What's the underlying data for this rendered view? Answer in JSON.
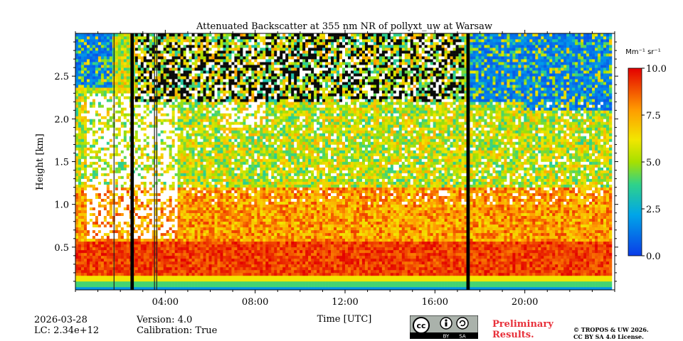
{
  "chart_data": {
    "type": "heatmap",
    "title": "Attenuated Backscatter at 355 nm NR of pollyxt_uw at Warsaw",
    "xlabel": "Time [UTC]",
    "ylabel": "Height [km]",
    "x_unit": "hours",
    "xlim": [
      0,
      24
    ],
    "ylim": [
      0,
      3.0
    ],
    "xticks": [
      4,
      8,
      12,
      16,
      20
    ],
    "xtick_labels": [
      "04:00",
      "08:00",
      "12:00",
      "16:00",
      "20:00"
    ],
    "yticks": [
      0.5,
      1.0,
      1.5,
      2.0,
      2.5
    ],
    "ytick_labels": [
      "0.5",
      "1.0",
      "1.5",
      "2.0",
      "2.5"
    ],
    "colorbar": {
      "label": "Mm⁻¹ sr⁻¹",
      "range": [
        0.0,
        10.0
      ],
      "ticks": [
        0.0,
        2.5,
        5.0,
        7.5,
        10.0
      ],
      "tick_labels": [
        "0.0",
        "2.5",
        "5.0",
        "7.5",
        "10.0"
      ],
      "colormap": "jet"
    },
    "no_data_intervals_hours": [
      [
        2.45,
        2.6
      ],
      [
        17.4,
        17.55
      ]
    ],
    "thin_gap_hours": [
      1.7,
      3.5,
      3.6
    ],
    "data_end_hour": 23.75,
    "notes": "Strong near-range signal below 0.2 km; noisy high values above 2.3 km in daytime; low backscatter (blue) at top early and after 17:30."
  },
  "footer": {
    "date": "2026-03-28",
    "lc": "LC: 2.34e+12",
    "version": "Version: 4.0",
    "calibration": "Calibration: True",
    "preliminary_line1": "Preliminary",
    "preliminary_line2": "Results.",
    "copyright_line1": "© TROPOS & UW 2026.",
    "copyright_line2": "CC BY SA 4.0 License.",
    "cc_by": "BY",
    "cc_sa": "SA",
    "cc_text": "cc"
  },
  "colors": {
    "prelim": "#e8303a",
    "nodata": "#000000"
  }
}
